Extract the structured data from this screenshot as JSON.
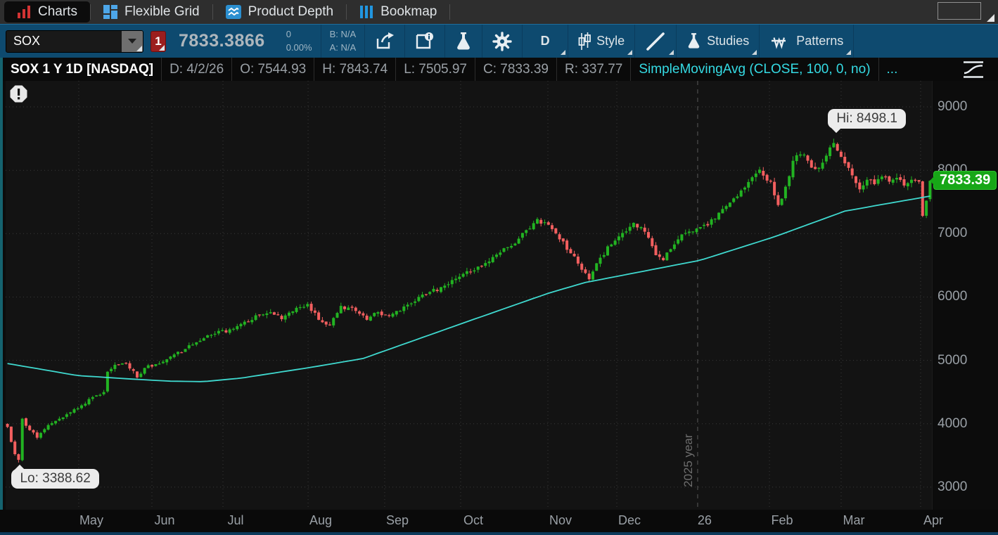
{
  "tab_bar": {
    "tabs": [
      {
        "label": "Charts",
        "active": true
      },
      {
        "label": "Flexible Grid",
        "active": false
      },
      {
        "label": "Product Depth",
        "active": false
      },
      {
        "label": "Bookmap",
        "active": false
      }
    ]
  },
  "toolbar": {
    "symbol": "SOX",
    "alert_badge": "1",
    "last_price": "7833.3866",
    "change": "0",
    "change_percent": "0.00%",
    "bid": "B: N/A",
    "ask": "A: N/A",
    "timeframe": "D",
    "style": "Style",
    "studies": "Studies",
    "patterns": "Patterns"
  },
  "chart_header": {
    "title": "SOX 1 Y 1D [NASDAQ]",
    "fields": [
      "D: 4/2/26",
      "O: 7544.93",
      "H: 7843.74",
      "L: 7505.97",
      "C: 7833.39",
      "R: 337.77"
    ],
    "study": "SimpleMovingAvg (CLOSE, 100, 0, no)",
    "more": "..."
  },
  "chart_data": {
    "type": "candlestick",
    "title": "SOX 1 Y 1D [NASDAQ] daily candles, Apr 2025 - Apr 2026, with SimpleMovingAvg(CLOSE,100,0,no)",
    "y_domain": [
      2644,
      9411
    ],
    "y_ticks": [
      3000,
      4000,
      5000,
      6000,
      7000,
      8000,
      9000
    ],
    "x_ticks": [
      {
        "label": "May",
        "f": 0.0926
      },
      {
        "label": "Jun",
        "f": 0.1716
      },
      {
        "label": "Jul",
        "f": 0.2483
      },
      {
        "label": "Aug",
        "f": 0.3402
      },
      {
        "label": "Sep",
        "f": 0.4229
      },
      {
        "label": "Oct",
        "f": 0.5049
      },
      {
        "label": "Nov",
        "f": 0.5991
      },
      {
        "label": "Dec",
        "f": 0.6735
      },
      {
        "label": "26",
        "f": 0.7547,
        "year_divider": true
      },
      {
        "label": "Feb",
        "f": 0.8383
      },
      {
        "label": "Mar",
        "f": 0.9157
      },
      {
        "label": "Apr",
        "f": 1.0015
      }
    ],
    "year_divider_label": "2025 year",
    "candle_count": 250,
    "close_anchors": [
      [
        0,
        3950
      ],
      [
        2,
        3520
      ],
      [
        3,
        3430
      ],
      [
        4,
        4080
      ],
      [
        6,
        3900
      ],
      [
        8,
        3780
      ],
      [
        11,
        3980
      ],
      [
        14,
        4080
      ],
      [
        17,
        4180
      ],
      [
        20,
        4290
      ],
      [
        23,
        4420
      ],
      [
        26,
        4500
      ],
      [
        27,
        4820
      ],
      [
        29,
        4930
      ],
      [
        32,
        4960
      ],
      [
        35,
        4730
      ],
      [
        37,
        4880
      ],
      [
        40,
        4940
      ],
      [
        44,
        5060
      ],
      [
        48,
        5180
      ],
      [
        52,
        5310
      ],
      [
        56,
        5420
      ],
      [
        60,
        5490
      ],
      [
        64,
        5610
      ],
      [
        68,
        5720
      ],
      [
        71,
        5760
      ],
      [
        74,
        5650
      ],
      [
        78,
        5830
      ],
      [
        81,
        5890
      ],
      [
        84,
        5640
      ],
      [
        87,
        5560
      ],
      [
        90,
        5860
      ],
      [
        94,
        5780
      ],
      [
        97,
        5640
      ],
      [
        100,
        5760
      ],
      [
        103,
        5700
      ],
      [
        106,
        5780
      ],
      [
        110,
        5930
      ],
      [
        114,
        6080
      ],
      [
        118,
        6180
      ],
      [
        122,
        6320
      ],
      [
        126,
        6420
      ],
      [
        130,
        6560
      ],
      [
        134,
        6770
      ],
      [
        138,
        6920
      ],
      [
        141,
        7080
      ],
      [
        143,
        7230
      ],
      [
        146,
        7140
      ],
      [
        149,
        6910
      ],
      [
        152,
        6690
      ],
      [
        155,
        6430
      ],
      [
        157,
        6280
      ],
      [
        160,
        6620
      ],
      [
        163,
        6830
      ],
      [
        166,
        7010
      ],
      [
        169,
        7170
      ],
      [
        172,
        7030
      ],
      [
        175,
        6660
      ],
      [
        177,
        6580
      ],
      [
        180,
        6830
      ],
      [
        183,
        7010
      ],
      [
        186,
        7080
      ],
      [
        189,
        7130
      ],
      [
        192,
        7330
      ],
      [
        195,
        7490
      ],
      [
        198,
        7680
      ],
      [
        201,
        7890
      ],
      [
        203,
        8010
      ],
      [
        206,
        7820
      ],
      [
        208,
        7450
      ],
      [
        210,
        7740
      ],
      [
        212,
        8150
      ],
      [
        214,
        8250
      ],
      [
        216,
        8150
      ],
      [
        218,
        8020
      ],
      [
        220,
        8120
      ],
      [
        222,
        8360
      ],
      [
        223,
        8430
      ],
      [
        224,
        8310
      ],
      [
        226,
        8110
      ],
      [
        228,
        7920
      ],
      [
        230,
        7700
      ],
      [
        232,
        7850
      ],
      [
        234,
        7780
      ],
      [
        236,
        7900
      ],
      [
        238,
        7820
      ],
      [
        240,
        7880
      ],
      [
        242,
        7760
      ],
      [
        244,
        7850
      ],
      [
        246,
        7820
      ],
      [
        247,
        7280
      ],
      [
        248,
        7520
      ],
      [
        249,
        7833.39
      ]
    ],
    "sma": {
      "label": "SimpleMovingAvg (CLOSE, 100, 0, no)",
      "period": 100,
      "anchors": [
        [
          0,
          4950
        ],
        [
          19,
          4760
        ],
        [
          35,
          4700
        ],
        [
          44,
          4672
        ],
        [
          53,
          4665
        ],
        [
          63,
          4720
        ],
        [
          83,
          4900
        ],
        [
          96,
          5030
        ],
        [
          124,
          5610
        ],
        [
          146,
          6060
        ],
        [
          156,
          6230
        ],
        [
          187,
          6580
        ],
        [
          207,
          6950
        ],
        [
          226,
          7355
        ],
        [
          238,
          7480
        ],
        [
          249,
          7592
        ]
      ]
    },
    "annotations": {
      "hi": {
        "label": "Hi: 8498.1",
        "value": 8498.1,
        "day": 223
      },
      "lo": {
        "label": "Lo: 3388.62",
        "value": 3388.62,
        "day": 3
      },
      "last": {
        "label": "7833.39",
        "value": 7833.39,
        "candle": {
          "open": 7544.93,
          "high": 7843.74,
          "low": 7505.97,
          "close": 7833.39
        }
      }
    },
    "colors": {
      "up": "#22b322",
      "down": "#f25f5f",
      "sma": "#3fd9cf",
      "grid": "#3a3a3a",
      "year_line": "#5a5a5a",
      "year_text": "#6e6e6e",
      "axis_text": "#9aa0a6",
      "bubble_bg": "#ececec",
      "bubble_text": "#3c3c3c",
      "price_tag_bg": "#17a717",
      "price_tag_text": "#ffffff",
      "background": "#131313"
    },
    "render": {
      "seed": 7,
      "close_noise": 0.006,
      "range_frac": 0.009,
      "open_gap": 0.004
    }
  }
}
